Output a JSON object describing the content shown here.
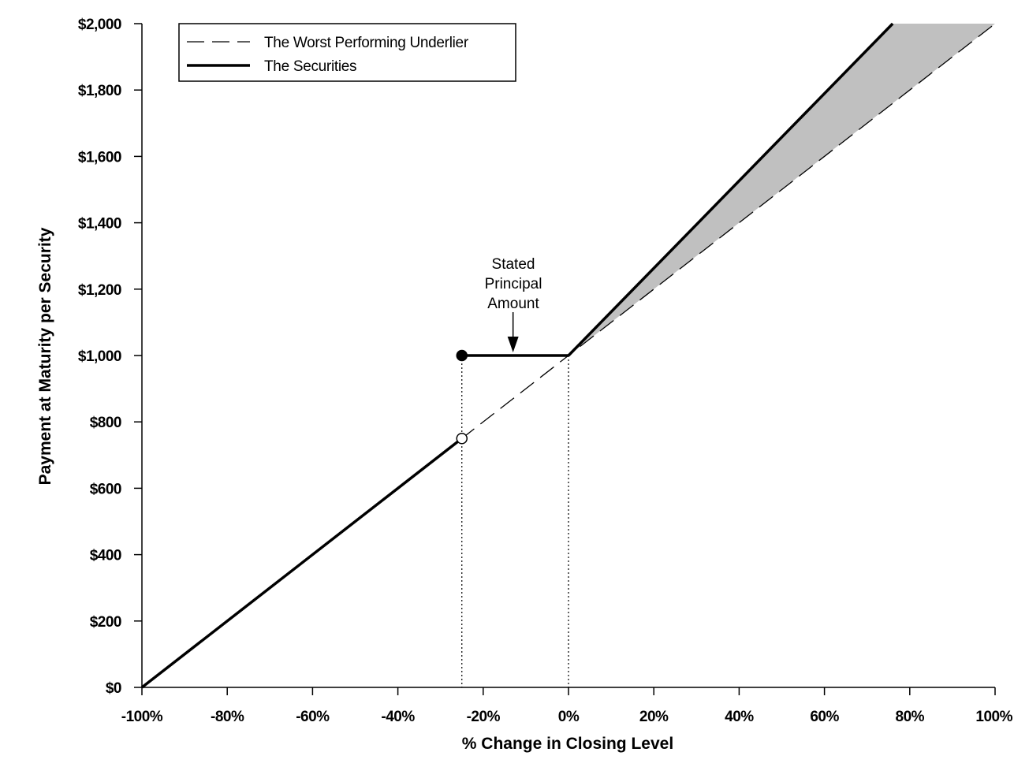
{
  "chart_data": {
    "type": "line",
    "xlabel": "% Change in Closing Level",
    "ylabel": "Payment at Maturity per Security",
    "xlim": [
      -100,
      100
    ],
    "ylim": [
      0,
      2000
    ],
    "x_ticks": [
      -100,
      -80,
      -60,
      -40,
      -20,
      0,
      20,
      40,
      60,
      80,
      100
    ],
    "x_tick_labels": [
      "-100%",
      "-80%",
      "-60%",
      "-40%",
      "-20%",
      "0%",
      "20%",
      "40%",
      "60%",
      "80%",
      "100%"
    ],
    "y_ticks": [
      0,
      200,
      400,
      600,
      800,
      1000,
      1200,
      1400,
      1600,
      1800,
      2000
    ],
    "y_tick_labels": [
      "$0",
      "$200",
      "$400",
      "$600",
      "$800",
      "$1,000",
      "$1,200",
      "$1,400",
      "$1,600",
      "$1,800",
      "$2,000"
    ],
    "legend": {
      "placement": "top-left",
      "entries": [
        "The Worst Performing Underlier",
        "The Securities"
      ]
    },
    "series": [
      {
        "name": "The Worst Performing Underlier",
        "style": "dashed",
        "x": [
          -100,
          100
        ],
        "y": [
          0,
          2000
        ]
      },
      {
        "name": "The Securities",
        "style": "solid",
        "segments": [
          {
            "x": [
              -100,
              -25
            ],
            "y": [
              0,
              750
            ]
          },
          {
            "x": [
              -25,
              0
            ],
            "y": [
              1000,
              1000
            ]
          },
          {
            "x": [
              0,
              76
            ],
            "y": [
              1000,
              2000
            ]
          }
        ]
      }
    ],
    "markers": [
      {
        "x": -25,
        "y": 1000,
        "fill": "filled"
      },
      {
        "x": -25,
        "y": 750,
        "fill": "open"
      }
    ],
    "reference_lines": [
      {
        "x": -25,
        "y_top": 1000
      },
      {
        "x": 0,
        "y_top": 1000
      }
    ],
    "shaded_region": {
      "color": "#c0c0c0",
      "upper": {
        "x": [
          0,
          76
        ],
        "y": [
          1000,
          2000
        ]
      },
      "lower": {
        "x": [
          0,
          100
        ],
        "y": [
          1000,
          2000
        ]
      }
    },
    "annotation": {
      "lines": [
        "Stated",
        "Principal",
        "Amount"
      ],
      "arrow_target": {
        "x": -13,
        "y": 1000
      }
    }
  }
}
